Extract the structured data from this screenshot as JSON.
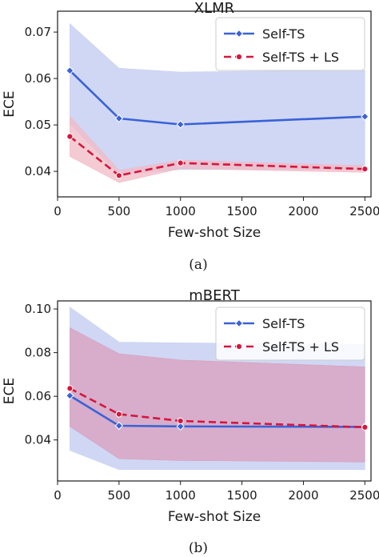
{
  "chart_data": [
    {
      "type": "line",
      "title": "XLMR",
      "xlabel": "Few-shot Size",
      "ylabel": "ECE",
      "caption": "(a)",
      "x": [
        100,
        500,
        1000,
        2500
      ],
      "xlim": [
        0,
        2550
      ],
      "ylim": [
        0.0345,
        0.0745
      ],
      "xticks": [
        0,
        500,
        1000,
        1500,
        2000,
        2500
      ],
      "yticks": [
        0.04,
        0.05,
        0.06,
        0.07
      ],
      "yticklabels": [
        "0.04",
        "0.05",
        "0.06",
        "0.07"
      ],
      "legend_position": "top-right",
      "series": [
        {
          "name": "Self-TS",
          "color": "#3a62d6",
          "marker": "diamond",
          "dash": "solid",
          "values": [
            0.0617,
            0.0514,
            0.0501,
            0.0518
          ],
          "band_lower": [
            0.0502,
            0.0393,
            0.0404,
            0.0404
          ],
          "band_upper": [
            0.0718,
            0.0622,
            0.0614,
            0.0618
          ],
          "band_color": "#c7d0f2"
        },
        {
          "name": "Self-TS + LS",
          "color": "#d6163e",
          "marker": "circle",
          "dash": "dashed",
          "values": [
            0.0475,
            0.0391,
            0.0418,
            0.0405
          ],
          "band_lower": [
            0.0432,
            0.0376,
            0.0406,
            0.0398
          ],
          "band_upper": [
            0.0519,
            0.0402,
            0.0424,
            0.0412
          ],
          "band_color": "#f2b9c4"
        }
      ]
    },
    {
      "type": "line",
      "title": "mBERT",
      "xlabel": "Few-shot Size",
      "ylabel": "ECE",
      "caption": "(b)",
      "x": [
        100,
        500,
        1000,
        2500
      ],
      "xlim": [
        0,
        2550
      ],
      "ylim": [
        0.0212,
        0.1037
      ],
      "xticks": [
        0,
        500,
        1000,
        1500,
        2000,
        2500
      ],
      "yticks": [
        0.04,
        0.06,
        0.08,
        0.1
      ],
      "yticklabels": [
        "0.04",
        "0.06",
        "0.08",
        "0.10"
      ],
      "legend_position": "top-right",
      "series": [
        {
          "name": "Self-TS",
          "color": "#3a62d6",
          "marker": "diamond",
          "dash": "solid",
          "values": [
            0.0603,
            0.0465,
            0.0462,
            0.046
          ],
          "band_lower": [
            0.0352,
            0.0264,
            0.0264,
            0.0264
          ],
          "band_upper": [
            0.1008,
            0.0848,
            0.0845,
            0.0838
          ],
          "band_color": "#c7d0f2"
        },
        {
          "name": "Self-TS + LS",
          "color": "#d6163e",
          "marker": "circle",
          "dash": "dashed",
          "values": [
            0.0636,
            0.0518,
            0.0487,
            0.0458
          ],
          "band_lower": [
            0.0462,
            0.0314,
            0.0306,
            0.0299
          ],
          "band_upper": [
            0.0914,
            0.0795,
            0.0766,
            0.0735
          ],
          "band_color": "#d99fbd"
        }
      ]
    }
  ]
}
